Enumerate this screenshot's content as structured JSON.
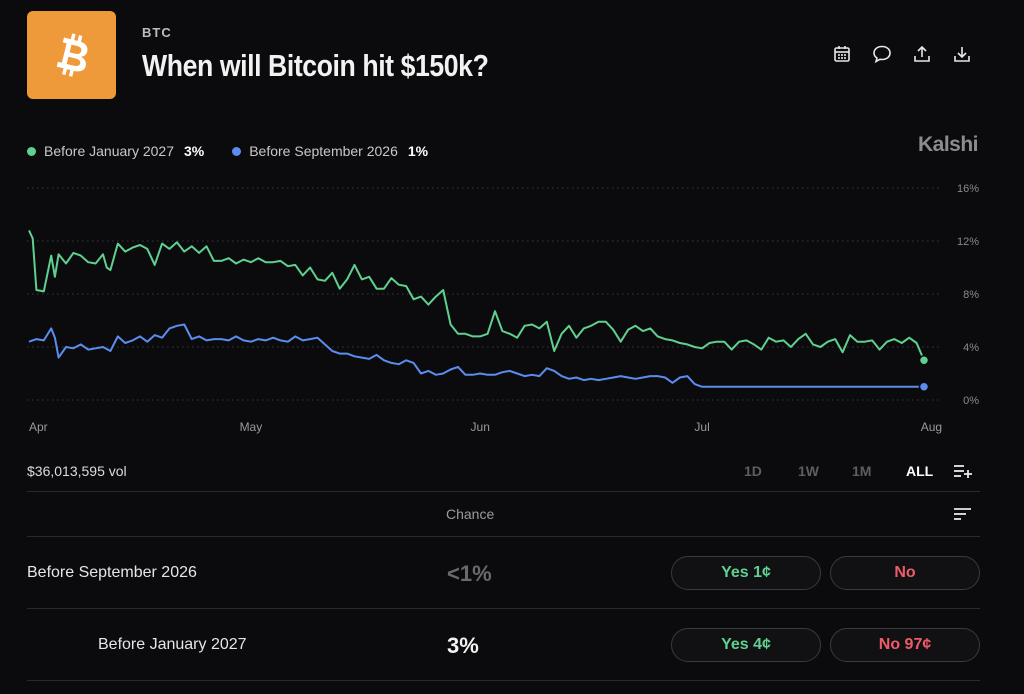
{
  "header": {
    "ticker": "BTC",
    "title": "When will Bitcoin hit $150k?",
    "logo_icon": "bitcoin-icon",
    "actions": [
      "calendar-icon",
      "comment-icon",
      "share-icon",
      "download-icon"
    ]
  },
  "legend": [
    {
      "label": "Before January 2027",
      "value": "3%",
      "color": "#5fd08f"
    },
    {
      "label": "Before September 2026",
      "value": "1%",
      "color": "#5b8def"
    }
  ],
  "brand": "Kalshi",
  "chart_data": {
    "type": "line",
    "title": "",
    "xlabel": "",
    "ylabel": "",
    "ylim": [
      0,
      16
    ],
    "y_ticks": [
      "16%",
      "12%",
      "8%",
      "4%",
      "0%"
    ],
    "y_tick_values": [
      16,
      12,
      8,
      4,
      0
    ],
    "x_tick_labels": [
      "Apr",
      "May",
      "Jun",
      "Jul",
      "Aug"
    ],
    "x_tick_days": [
      0,
      30,
      61,
      91,
      122
    ],
    "x_day_range": [
      0,
      121
    ],
    "grid": true,
    "series": [
      {
        "name": "Before January 2027",
        "color": "#5fd08f",
        "x": [
          0,
          0.5,
          1,
          2,
          3,
          3.5,
          4,
          5,
          6,
          7,
          8,
          9,
          10,
          10.5,
          11,
          12,
          13,
          14,
          15,
          16,
          17,
          18,
          19,
          20,
          21,
          22,
          23,
          24,
          25,
          26,
          27,
          28,
          29,
          30,
          31,
          32,
          33,
          34,
          35,
          36,
          37,
          38,
          39,
          40,
          41,
          42,
          43,
          44,
          45,
          46,
          47,
          48,
          49,
          50,
          51,
          52,
          53,
          54,
          55,
          56,
          57,
          58,
          59,
          60,
          61,
          62,
          63,
          64,
          65,
          66,
          67,
          68,
          69,
          70,
          71,
          72,
          73,
          74,
          75,
          76,
          77,
          78,
          79,
          80,
          81,
          82,
          83,
          84,
          85,
          86,
          87,
          88,
          89,
          90,
          91,
          92,
          93,
          94,
          95,
          96,
          97,
          98,
          99,
          100,
          101,
          102,
          103,
          104,
          105,
          106,
          107,
          108,
          109,
          110,
          111,
          112,
          113,
          114,
          115,
          116,
          117,
          118,
          119,
          120,
          121
        ],
        "values": [
          12.8,
          12.2,
          8.3,
          8.2,
          10.9,
          9.3,
          11.0,
          10.3,
          11.1,
          10.9,
          10.4,
          10.3,
          11.0,
          10.0,
          9.8,
          11.8,
          11.2,
          11.5,
          11.7,
          11.4,
          10.2,
          11.8,
          11.4,
          11.9,
          11.2,
          11.6,
          11.1,
          11.6,
          10.5,
          10.5,
          10.7,
          10.3,
          10.6,
          10.4,
          10.7,
          10.4,
          10.4,
          10.5,
          10.1,
          10.2,
          9.4,
          10.0,
          9.1,
          9.0,
          9.6,
          8.4,
          9.1,
          10.2,
          9.1,
          9.3,
          8.4,
          8.4,
          9.2,
          8.7,
          8.6,
          7.6,
          7.8,
          7.2,
          7.8,
          8.3,
          5.7,
          5.0,
          5.0,
          4.8,
          4.8,
          5.0,
          6.7,
          5.2,
          5.0,
          4.7,
          5.6,
          5.7,
          5.4,
          5.9,
          3.7,
          5.0,
          5.6,
          4.7,
          5.4,
          5.6,
          5.9,
          5.9,
          5.3,
          4.4,
          5.3,
          5.6,
          5.2,
          5.4,
          4.8,
          4.6,
          4.5,
          4.3,
          4.2,
          4.0,
          3.9,
          4.3,
          4.4,
          4.4,
          3.8,
          4.4,
          4.5,
          4.2,
          3.8,
          4.7,
          4.4,
          4.5,
          4.0,
          4.6,
          5.0,
          4.2,
          4.0,
          4.4,
          4.6,
          3.6,
          4.9,
          4.4,
          4.4,
          4.5,
          3.8,
          4.4,
          4.6,
          4.3,
          4.7,
          4.3,
          3.0
        ],
        "end_value": 3.0
      },
      {
        "name": "Before September 2026",
        "color": "#5b8def",
        "x": [
          0,
          1,
          2,
          3,
          3.5,
          4,
          5,
          6,
          7,
          8,
          9,
          10,
          11,
          12,
          13,
          14,
          15,
          16,
          17,
          18,
          19,
          20,
          21,
          22,
          23,
          24,
          25,
          26,
          27,
          28,
          29,
          30,
          31,
          32,
          33,
          34,
          35,
          36,
          37,
          38,
          39,
          40,
          41,
          42,
          43,
          44,
          45,
          46,
          47,
          48,
          49,
          50,
          51,
          52,
          53,
          54,
          55,
          56,
          57,
          58,
          59,
          60,
          61,
          62,
          63,
          64,
          65,
          66,
          67,
          68,
          69,
          70,
          71,
          72,
          73,
          74,
          75,
          76,
          77,
          78,
          79,
          80,
          81,
          82,
          83,
          84,
          85,
          86,
          87,
          88,
          89,
          90,
          91,
          121
        ],
        "values": [
          4.4,
          4.6,
          4.5,
          5.4,
          4.7,
          3.2,
          4.0,
          3.9,
          4.2,
          3.8,
          3.9,
          4.0,
          3.7,
          4.8,
          4.3,
          4.5,
          4.8,
          4.4,
          4.9,
          4.7,
          5.4,
          5.6,
          5.7,
          4.6,
          4.8,
          4.5,
          4.6,
          4.6,
          4.5,
          4.8,
          4.5,
          4.4,
          4.6,
          4.5,
          4.7,
          4.5,
          4.4,
          4.8,
          4.5,
          4.6,
          4.7,
          4.2,
          3.7,
          3.5,
          3.5,
          3.3,
          3.2,
          3.1,
          3.4,
          3.0,
          2.8,
          2.7,
          3.0,
          2.8,
          2.0,
          2.2,
          1.9,
          2.0,
          2.3,
          2.5,
          1.9,
          1.9,
          2.0,
          1.9,
          1.9,
          2.1,
          2.2,
          2.0,
          1.8,
          1.9,
          1.8,
          2.4,
          2.2,
          1.8,
          1.6,
          1.7,
          1.5,
          1.6,
          1.5,
          1.6,
          1.7,
          1.8,
          1.7,
          1.6,
          1.7,
          1.8,
          1.8,
          1.7,
          1.3,
          1.7,
          1.8,
          1.2,
          1.0,
          1.0
        ],
        "end_value": 1.0
      }
    ]
  },
  "volume": "$36,013,595 vol",
  "time_ranges": [
    {
      "label": "1D",
      "active": false
    },
    {
      "label": "1W",
      "active": false
    },
    {
      "label": "1M",
      "active": false
    },
    {
      "label": "ALL",
      "active": true
    }
  ],
  "table": {
    "chance_header": "Chance",
    "rows": [
      {
        "label": "Before September 2026",
        "chance": "<1%",
        "chance_color": "#6a6a6a",
        "yes": "Yes 1¢",
        "no": "No"
      },
      {
        "label": "Before January 2027",
        "chance": "3%",
        "chance_color": "#f2f2f2",
        "yes": "Yes 4¢",
        "no": "No 97¢"
      }
    ]
  }
}
